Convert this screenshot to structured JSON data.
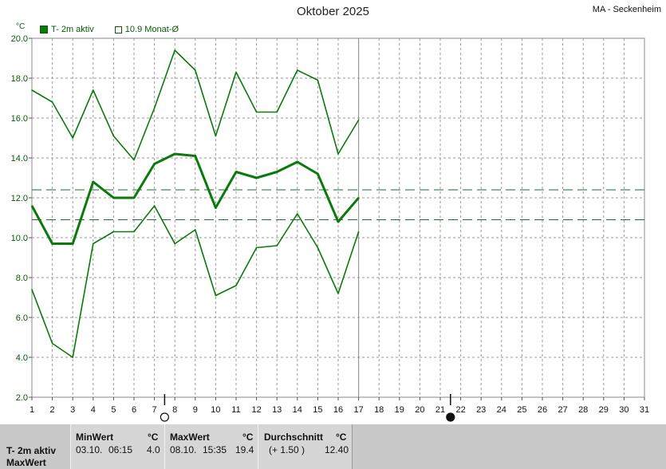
{
  "title": "Oktober 2025",
  "station": "MA - Seckenheim",
  "unit_label": "°C",
  "legend": {
    "series_label": "T- 2m aktiv",
    "avg_label": "10.9 Monat-Ø"
  },
  "colors": {
    "line": "#0a7a0a",
    "grid": "#9a9a9a",
    "axis": "#555555"
  },
  "chart_data": {
    "type": "line",
    "title": "Oktober 2025",
    "xlabel": "",
    "ylabel": "°C",
    "x": [
      1,
      2,
      3,
      4,
      5,
      6,
      7,
      8,
      9,
      10,
      11,
      12,
      13,
      14,
      15,
      16,
      17
    ],
    "x_ticks": [
      "1",
      "2",
      "3",
      "4",
      "5",
      "6",
      "7",
      "8",
      "9",
      "10",
      "11",
      "12",
      "13",
      "14",
      "15",
      "16",
      "17",
      "18",
      "19",
      "20",
      "21",
      "22",
      "23",
      "24",
      "25",
      "26",
      "27",
      "28",
      "29",
      "30",
      "31"
    ],
    "y_ticks": [
      "2.0",
      "4.0",
      "6.0",
      "8.0",
      "10.0",
      "12.0",
      "14.0",
      "16.0",
      "18.0",
      "20.0"
    ],
    "xlim": [
      1,
      31
    ],
    "ylim": [
      2.0,
      20.0
    ],
    "grid": true,
    "series": [
      {
        "name": "max",
        "values": [
          17.4,
          16.8,
          15.0,
          17.4,
          15.1,
          13.9,
          16.5,
          19.4,
          18.4,
          15.1,
          18.3,
          16.3,
          16.3,
          18.4,
          17.9,
          14.2,
          15.9
        ]
      },
      {
        "name": "T- 2m aktiv",
        "values": [
          11.6,
          9.7,
          9.7,
          12.8,
          12.0,
          12.0,
          13.7,
          14.2,
          14.1,
          11.5,
          13.3,
          13.0,
          13.3,
          13.8,
          13.2,
          10.8,
          12.0
        ]
      },
      {
        "name": "min",
        "values": [
          7.4,
          4.7,
          4.0,
          9.7,
          10.3,
          10.3,
          11.6,
          9.7,
          10.4,
          7.1,
          7.6,
          9.5,
          9.6,
          11.2,
          9.5,
          7.2,
          10.3
        ]
      }
    ],
    "reference_lines": [
      {
        "label": "Durchschnitt",
        "value": 12.4
      },
      {
        "label": "10.9 Monat-Ø",
        "value": 10.9
      }
    ],
    "current_day": 17,
    "moon_phases": [
      {
        "day": 7.5,
        "phase": "full"
      },
      {
        "day": 21.5,
        "phase": "new"
      }
    ]
  },
  "stats": {
    "row_label": "T- 2m aktiv",
    "row_label2": "MaxWert",
    "min": {
      "header": "MinWert",
      "unit": "°C",
      "date": "03.10.",
      "time": "06:15",
      "value": "4.0"
    },
    "max": {
      "header": "MaxWert",
      "unit": "°C",
      "date": "08.10.",
      "time": "15:35",
      "value": "19.4"
    },
    "avg": {
      "header": "Durchschnitt",
      "unit": "°C",
      "delta": "(+ 1.50 )",
      "value": "12.40"
    }
  }
}
